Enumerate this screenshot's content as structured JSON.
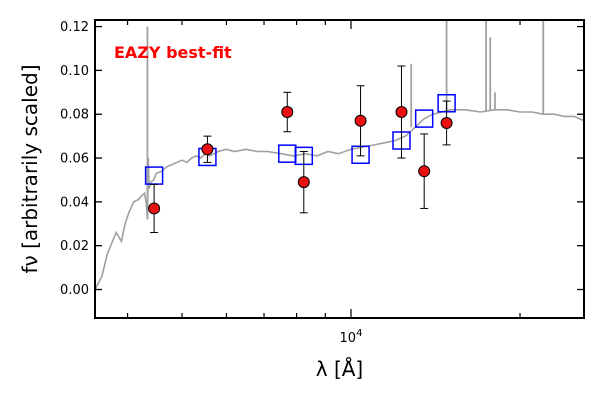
{
  "chart_data": {
    "type": "scatter",
    "annotation": "EAZY best-fit",
    "xlabel": "λ [Å]",
    "ylabel": "fν [arbitrarily scaled]",
    "x_scale": "log",
    "xlim": [
      3500,
      26000
    ],
    "ylim": [
      -0.013,
      0.123
    ],
    "x_tick_labels": [
      {
        "value": 10000,
        "base": "10",
        "exp": "4"
      }
    ],
    "y_tick_values": [
      0.0,
      0.02,
      0.04,
      0.06,
      0.08,
      0.1,
      0.12
    ],
    "y_tick_labels": [
      "0.00",
      "0.02",
      "0.04",
      "0.06",
      "0.08",
      "0.10",
      "0.12"
    ],
    "colors": {
      "template": "#a0a0a0",
      "model": "#0000ff",
      "observed": "#e81010",
      "annotation": "#ff0000"
    },
    "series": [
      {
        "kind": "model-photometry",
        "x": [
          4460,
          5550,
          7700,
          8240,
          10400,
          12300,
          13500,
          14800
        ],
        "y": [
          0.052,
          0.0605,
          0.062,
          0.061,
          0.0615,
          0.068,
          0.078,
          0.085
        ]
      },
      {
        "kind": "observed-photometry",
        "x": [
          4460,
          5550,
          7700,
          8240,
          10400,
          12300,
          13500,
          14800
        ],
        "y": [
          0.037,
          0.064,
          0.081,
          0.049,
          0.077,
          0.081,
          0.054,
          0.076
        ],
        "yerr": [
          0.011,
          0.006,
          0.009,
          0.014,
          0.016,
          0.021,
          0.017,
          0.01
        ]
      },
      {
        "kind": "template-spectrum",
        "x": [
          3500,
          3600,
          3680,
          3760,
          3820,
          3900,
          3960,
          4020,
          4100,
          4180,
          4250,
          4290,
          4320,
          4340,
          4355,
          4370,
          4400,
          4450,
          4500,
          4600,
          4700,
          4800,
          4900,
          5000,
          5100,
          5200,
          5300,
          5400,
          5500,
          5600,
          5800,
          6000,
          6200,
          6500,
          6800,
          7100,
          7500,
          7900,
          8300,
          8700,
          9100,
          9500,
          10000,
          10500,
          11000,
          11500,
          12000,
          12500,
          13000,
          13500,
          14000,
          14500,
          15000,
          16000,
          17000,
          18000,
          19000,
          20000,
          21000,
          22000,
          23000,
          24000,
          25000,
          26000
        ],
        "y": [
          0.0,
          0.006,
          0.016,
          0.022,
          0.026,
          0.022,
          0.03,
          0.035,
          0.04,
          0.041,
          0.043,
          0.044,
          0.039,
          0.032,
          0.06,
          0.046,
          0.049,
          0.05,
          0.053,
          0.054,
          0.056,
          0.057,
          0.058,
          0.059,
          0.058,
          0.06,
          0.061,
          0.06,
          0.062,
          0.061,
          0.063,
          0.064,
          0.063,
          0.064,
          0.063,
          0.063,
          0.062,
          0.061,
          0.062,
          0.061,
          0.063,
          0.062,
          0.064,
          0.065,
          0.066,
          0.067,
          0.068,
          0.07,
          0.074,
          0.078,
          0.08,
          0.081,
          0.082,
          0.082,
          0.081,
          0.082,
          0.082,
          0.081,
          0.081,
          0.08,
          0.08,
          0.079,
          0.079,
          0.077
        ]
      }
    ],
    "emission_lines": [
      {
        "x": 4340,
        "y": 0.12
      },
      {
        "x": 12800,
        "y": 0.103
      },
      {
        "x": 14800,
        "y": 0.125
      },
      {
        "x": 17400,
        "y": 0.125
      },
      {
        "x": 17700,
        "y": 0.115
      },
      {
        "x": 18050,
        "y": 0.09
      },
      {
        "x": 22000,
        "y": 0.125
      }
    ]
  }
}
